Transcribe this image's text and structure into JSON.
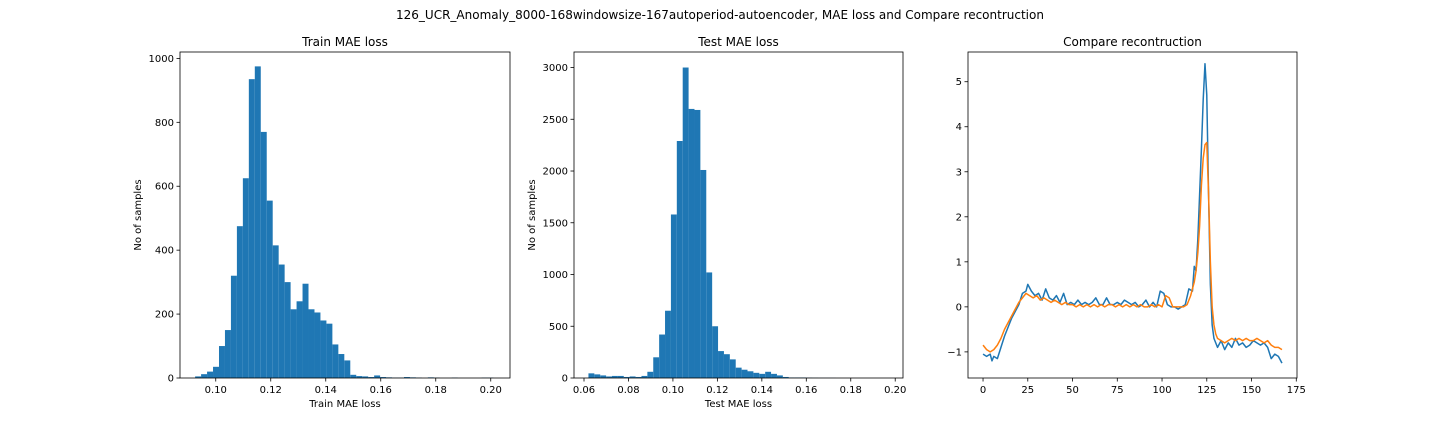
{
  "figure": {
    "suptitle": "126_UCR_Anomaly_8000-168windowsize-167autoperiod-autoencoder, MAE loss and Compare recontruction"
  },
  "chart_data": [
    {
      "type": "bar",
      "title": "Train MAE loss",
      "xlabel": "Train MAE loss",
      "ylabel": "No of samples",
      "xlim": [
        0.087,
        0.207
      ],
      "ylim": [
        0,
        1020
      ],
      "xticks": [
        0.1,
        0.12,
        0.14,
        0.16,
        0.18,
        0.2
      ],
      "xtick_labels": [
        "0.10",
        "0.12",
        "0.14",
        "0.16",
        "0.18",
        "0.20"
      ],
      "yticks": [
        0,
        200,
        400,
        600,
        800,
        1000
      ],
      "ytick_labels": [
        "0",
        "200",
        "400",
        "600",
        "800",
        "1000"
      ],
      "color": "#1f77b4",
      "bin_start": 0.0925,
      "bin_width": 0.00217,
      "values": [
        5,
        12,
        20,
        35,
        100,
        150,
        320,
        475,
        625,
        935,
        975,
        770,
        555,
        415,
        355,
        300,
        215,
        240,
        295,
        215,
        205,
        180,
        170,
        105,
        75,
        55,
        10,
        6,
        5,
        3,
        8,
        3,
        2,
        1,
        1,
        3,
        2,
        1,
        0,
        2,
        1,
        0,
        0,
        1,
        0,
        0,
        0,
        0,
        1,
        1
      ]
    },
    {
      "type": "bar",
      "title": "Test MAE loss",
      "xlabel": "Test MAE loss",
      "ylabel": "No of samples",
      "xlim": [
        0.0555,
        0.2035
      ],
      "ylim": [
        0,
        3150
      ],
      "xticks": [
        0.06,
        0.08,
        0.1,
        0.12,
        0.14,
        0.16,
        0.18,
        0.2
      ],
      "xtick_labels": [
        "0.06",
        "0.08",
        "0.10",
        "0.12",
        "0.14",
        "0.16",
        "0.18",
        "0.20"
      ],
      "yticks": [
        0,
        500,
        1000,
        1500,
        2000,
        2500,
        3000
      ],
      "ytick_labels": [
        "0",
        "500",
        "1000",
        "1500",
        "2000",
        "2500",
        "3000"
      ],
      "color": "#1f77b4",
      "bin_start": 0.062,
      "bin_width": 0.00265,
      "values": [
        45,
        35,
        25,
        15,
        20,
        20,
        10,
        15,
        10,
        20,
        60,
        200,
        420,
        650,
        1580,
        2290,
        3000,
        2600,
        2590,
        2010,
        1020,
        500,
        260,
        230,
        180,
        100,
        80,
        65,
        50,
        40,
        60,
        40,
        25,
        10,
        5,
        5,
        5,
        3,
        2,
        1,
        1,
        1,
        0,
        0,
        0,
        0,
        0,
        0,
        0,
        0
      ]
    },
    {
      "type": "line",
      "title": "Compare recontruction",
      "xlabel": "",
      "ylabel": "",
      "xlim": [
        -8.4,
        175.4
      ],
      "ylim": [
        -1.58,
        5.66
      ],
      "xticks": [
        0,
        25,
        50,
        75,
        100,
        125,
        150,
        175
      ],
      "xtick_labels": [
        "0",
        "25",
        "50",
        "75",
        "100",
        "125",
        "150",
        "175"
      ],
      "yticks": [
        -1,
        0,
        1,
        2,
        3,
        4,
        5
      ],
      "ytick_labels": [
        "−1",
        "0",
        "1",
        "2",
        "3",
        "4",
        "5"
      ],
      "series": [
        {
          "color": "#1f77b4",
          "x": [
            0,
            2,
            4,
            5,
            6,
            8,
            10,
            12,
            14,
            16,
            18,
            20,
            22,
            24,
            25,
            27,
            29,
            31,
            33,
            35,
            37,
            39,
            41,
            43,
            45,
            47,
            49,
            51,
            53,
            55,
            57,
            59,
            61,
            63,
            65,
            67,
            69,
            71,
            73,
            75,
            77,
            79,
            81,
            83,
            85,
            87,
            89,
            91,
            93,
            95,
            97,
            99,
            101,
            103,
            105,
            107,
            109,
            111,
            113,
            115,
            117,
            118,
            119,
            120,
            121,
            122,
            123,
            124,
            125,
            126,
            127,
            128,
            129,
            130,
            131,
            133,
            135,
            137,
            139,
            141,
            143,
            145,
            147,
            149,
            151,
            153,
            155,
            157,
            159,
            161,
            163,
            165,
            167
          ],
          "y": [
            -1.05,
            -1.1,
            -1.05,
            -1.2,
            -1.1,
            -1.15,
            -0.9,
            -0.65,
            -0.45,
            -0.25,
            -0.1,
            0.05,
            0.3,
            0.35,
            0.5,
            0.35,
            0.25,
            0.3,
            0.15,
            0.4,
            0.2,
            0.15,
            0.25,
            0.1,
            0.3,
            0.05,
            0.1,
            0.05,
            0.15,
            0.05,
            0.1,
            0.05,
            0.1,
            0.2,
            0.05,
            0.05,
            0.2,
            0.05,
            0.05,
            0.1,
            0.05,
            0.15,
            0.1,
            0.05,
            0.1,
            0.0,
            0.05,
            0.15,
            0.0,
            0.1,
            0.0,
            0.35,
            0.3,
            0.05,
            0.0,
            0.0,
            -0.05,
            0.0,
            0.05,
            0.4,
            0.35,
            0.9,
            0.8,
            1.5,
            2.5,
            3.5,
            4.6,
            5.4,
            4.7,
            2.5,
            0.5,
            -0.4,
            -0.7,
            -0.8,
            -0.9,
            -0.75,
            -0.95,
            -0.8,
            -0.9,
            -0.7,
            -0.85,
            -0.8,
            -0.9,
            -0.85,
            -0.75,
            -0.8,
            -0.85,
            -0.8,
            -0.9,
            -1.15,
            -1.05,
            -1.1,
            -1.25
          ]
        },
        {
          "color": "#ff7f0e",
          "x": [
            0,
            2,
            4,
            6,
            8,
            10,
            12,
            14,
            16,
            18,
            20,
            22,
            24,
            26,
            28,
            30,
            32,
            34,
            36,
            38,
            40,
            42,
            44,
            46,
            48,
            50,
            52,
            54,
            56,
            58,
            60,
            62,
            64,
            66,
            68,
            70,
            72,
            74,
            76,
            78,
            80,
            82,
            84,
            86,
            88,
            90,
            92,
            94,
            96,
            98,
            100,
            102,
            104,
            106,
            108,
            110,
            112,
            114,
            116,
            118,
            119,
            120,
            121,
            122,
            123,
            124,
            125,
            126,
            127,
            128,
            129,
            130,
            131,
            133,
            135,
            137,
            139,
            141,
            143,
            145,
            147,
            149,
            151,
            153,
            155,
            157,
            159,
            161,
            163,
            165,
            167
          ],
          "y": [
            -0.85,
            -0.95,
            -1.0,
            -0.95,
            -0.85,
            -0.7,
            -0.5,
            -0.35,
            -0.2,
            -0.05,
            0.1,
            0.2,
            0.3,
            0.25,
            0.2,
            0.25,
            0.15,
            0.2,
            0.15,
            0.1,
            0.15,
            0.1,
            0.05,
            0.1,
            0.05,
            0.05,
            0.0,
            0.05,
            0.0,
            0.05,
            0.0,
            0.05,
            0.0,
            0.05,
            0.0,
            0.05,
            0.05,
            0.0,
            0.05,
            0.0,
            0.05,
            0.0,
            0.05,
            0.0,
            0.05,
            0.0,
            0.0,
            0.05,
            0.0,
            0.05,
            0.0,
            0.25,
            0.2,
            0.0,
            0.0,
            0.0,
            0.0,
            0.05,
            0.25,
            0.55,
            0.8,
            1.2,
            1.8,
            2.7,
            3.3,
            3.6,
            3.65,
            2.5,
            1.0,
            0.0,
            -0.4,
            -0.6,
            -0.7,
            -0.75,
            -0.8,
            -0.75,
            -0.7,
            -0.75,
            -0.7,
            -0.75,
            -0.7,
            -0.75,
            -0.75,
            -0.7,
            -0.75,
            -0.8,
            -0.75,
            -0.85,
            -0.9,
            -0.9,
            -0.95
          ]
        }
      ]
    }
  ]
}
